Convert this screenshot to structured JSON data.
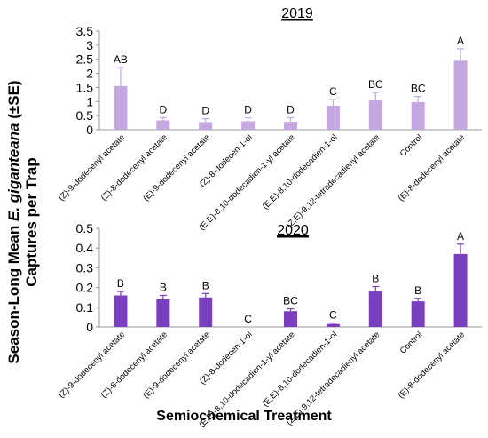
{
  "ylabel": {
    "line1_prefix": "Season-Long Mean ",
    "line1_species": "E. giganteana",
    "line1_suffix": " (±SE)",
    "line2": "Captures per Trap"
  },
  "xlabel": "Semiochemical Treatment",
  "chart_data": [
    {
      "type": "bar",
      "title": "2019",
      "ylim": [
        0,
        3.5
      ],
      "yticks": [
        0,
        0.5,
        1,
        1.5,
        2,
        2.5,
        3,
        3.5
      ],
      "yticklabels": [
        "0",
        "0.5",
        "1",
        "1.5",
        "2",
        "2.5",
        "3",
        "3.5"
      ],
      "bar_color": "#c5a8e2",
      "categories": [
        "(Z)-9-dodecenyl acetate",
        "(Z)-8-dodecenyl acetate",
        "(E)-9-dodecenyl acetate",
        "(Z)-8-dodecen-1-ol",
        "(E,E)-8,10-dodecadien-1-yl acetate",
        "(E,E)-8,10-dodecadien-1-ol",
        "(Z,E)-9,12-tetradecadienyl acetate",
        "Control",
        "(E)-8-dodecenyl acetate"
      ],
      "values": [
        1.55,
        0.33,
        0.27,
        0.3,
        0.28,
        0.85,
        1.07,
        0.98,
        2.45
      ],
      "errors": [
        0.65,
        0.1,
        0.12,
        0.12,
        0.15,
        0.22,
        0.25,
        0.2,
        0.42
      ],
      "letters": [
        "AB",
        "D",
        "D",
        "D",
        "D",
        "C",
        "BC",
        "BC",
        "A"
      ]
    },
    {
      "type": "bar",
      "title": "2020",
      "ylim": [
        0,
        0.5
      ],
      "yticks": [
        0,
        0.1,
        0.2,
        0.3,
        0.4,
        0.5
      ],
      "yticklabels": [
        "0",
        "0.1",
        "0.2",
        "0.3",
        "0.4",
        "0.5"
      ],
      "bar_color": "#7a3fbf",
      "categories": [
        "(Z)-9-dodecenyl acetate",
        "(Z)-8-dodecenyl acetate",
        "(E)-9-dodecenyl acetate",
        "(Z)-8-dodecen-1-ol",
        "(E,E)-8,10-dodecadien-1-yl acetate",
        "(E,E)-8,10-dodecadien-1-ol",
        "(Z,E)-9,12-tetradecadienyl acetate",
        "Control",
        "(E)-8-dodecenyl acetate"
      ],
      "values": [
        0.16,
        0.14,
        0.15,
        0.0,
        0.08,
        0.015,
        0.18,
        0.13,
        0.37
      ],
      "errors": [
        0.02,
        0.02,
        0.02,
        0.0,
        0.012,
        0.005,
        0.025,
        0.015,
        0.05
      ],
      "letters": [
        "B",
        "B",
        "B",
        "C",
        "BC",
        "C",
        "B",
        "B",
        "A"
      ]
    }
  ]
}
